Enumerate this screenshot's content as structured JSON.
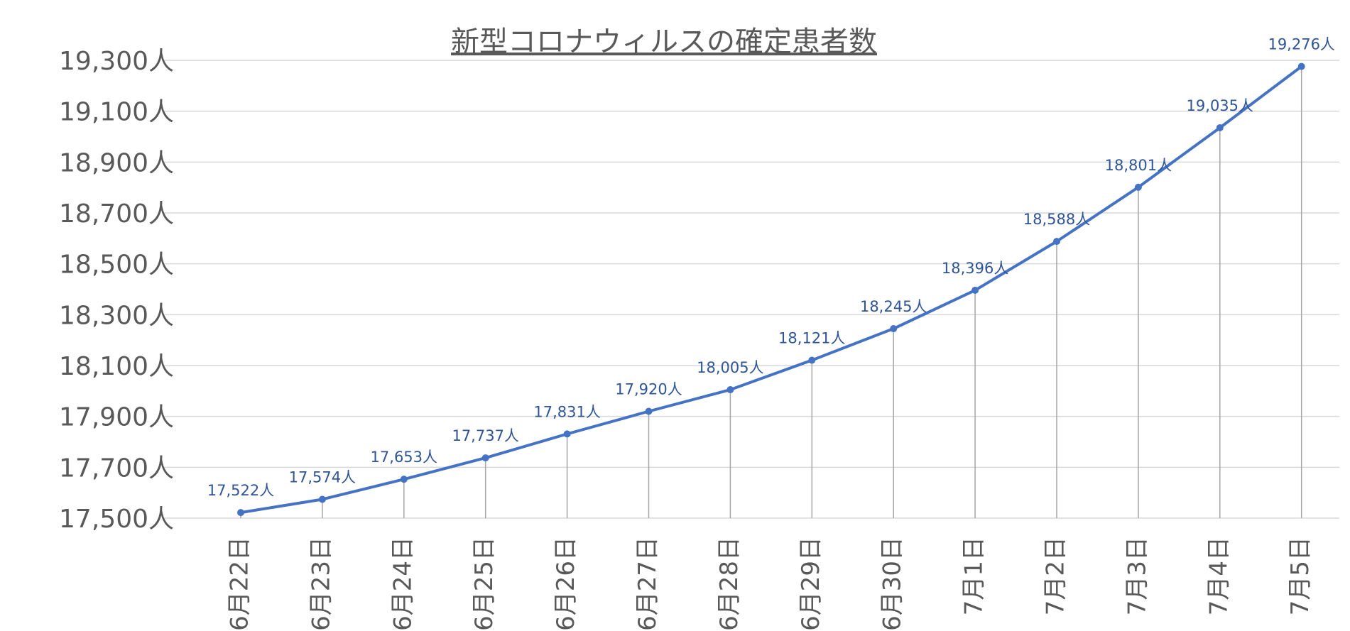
{
  "chart_data": {
    "type": "line",
    "title": "新型コロナウィルスの確定患者数",
    "categories": [
      "6月22日",
      "6月23日",
      "6月24日",
      "6月25日",
      "6月26日",
      "6月27日",
      "6月28日",
      "6月29日",
      "6月30日",
      "7月1日",
      "7月2日",
      "7月3日",
      "7月4日",
      "7月5日"
    ],
    "series": [
      {
        "values": [
          17522,
          17574,
          17653,
          17737,
          17831,
          17920,
          18005,
          18121,
          18245,
          18396,
          18588,
          18801,
          19035,
          19276
        ],
        "data_labels": [
          "17,522人",
          "17,574人",
          "17,653人",
          "17,737人",
          "17,831人",
          "17,920人",
          "18,005人",
          "18,121人",
          "18,245人",
          "18,396人",
          "18,588人",
          "18,801人",
          "19,035人",
          "19,276人"
        ]
      }
    ],
    "yticks": [
      17500,
      17700,
      17900,
      18100,
      18300,
      18500,
      18700,
      18900,
      19100,
      19300
    ],
    "ytick_labels": [
      "17,500人",
      "17,700人",
      "17,900人",
      "18,100人",
      "18,300人",
      "18,500人",
      "18,700人",
      "18,900人",
      "19,100人",
      "19,300人"
    ],
    "ylim": [
      17500,
      19300
    ],
    "xlabel": "",
    "ylabel": "",
    "grid": true,
    "drop_lines": true,
    "colors": {
      "line": "#4472c4",
      "grid": "#d9d9d9",
      "drop_line": "#a6a6a6",
      "axis_text": "#595959",
      "data_label": "#2f5597"
    }
  }
}
